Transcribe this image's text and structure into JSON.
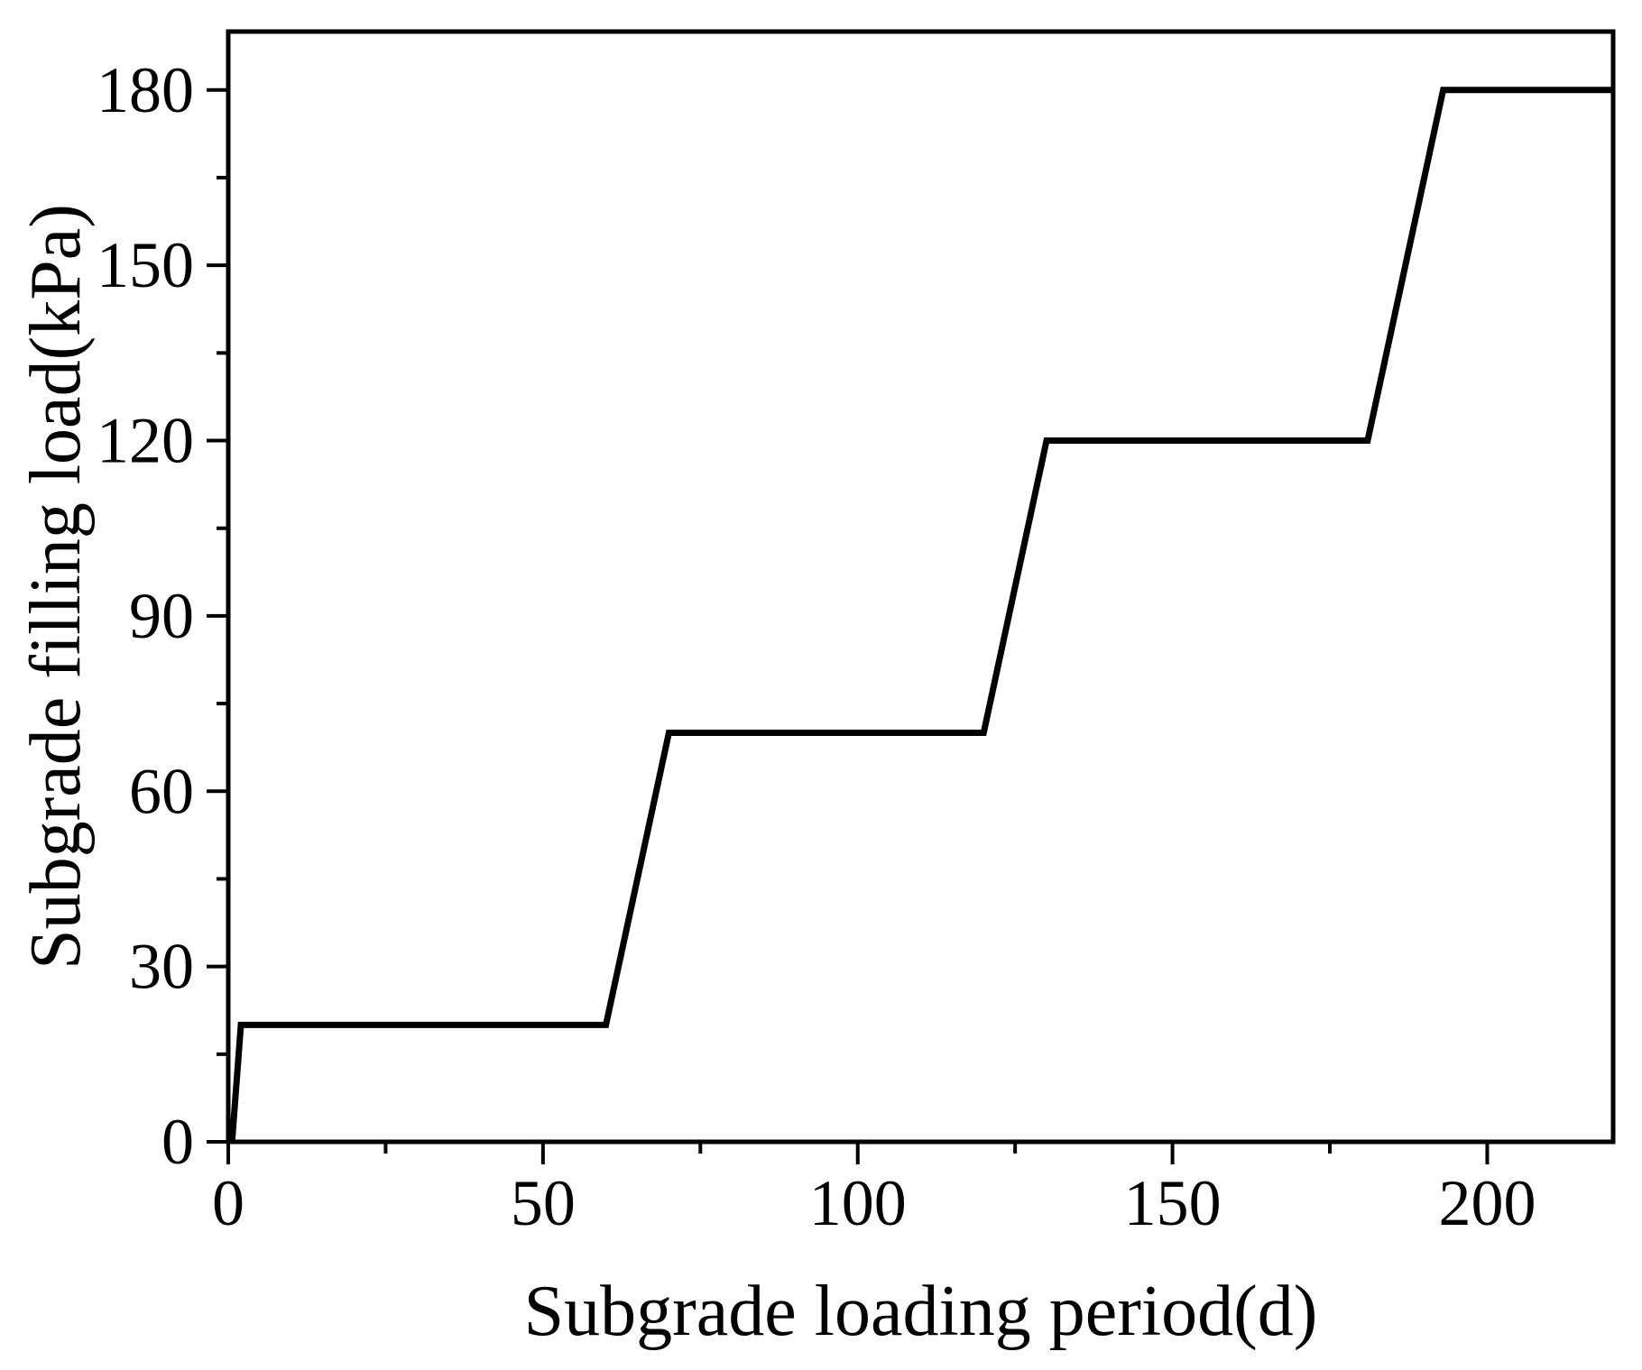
{
  "figure": {
    "background": "#ffffff",
    "line_color": "#000000",
    "axis_color": "#000000",
    "text_color": "#000000"
  },
  "chart_data": {
    "type": "line",
    "title": "",
    "xlabel": "Subgrade loading period(d)",
    "ylabel": "Subgrade filling load(kPa)",
    "series": [
      {
        "name": "Subgrade filling load",
        "points": [
          [
            0.6,
            0
          ],
          [
            2,
            20
          ],
          [
            60,
            20
          ],
          [
            70,
            70
          ],
          [
            120,
            70
          ],
          [
            130,
            120
          ],
          [
            181,
            120
          ],
          [
            193,
            180
          ],
          [
            220,
            180
          ]
        ]
      }
    ],
    "xlim": [
      0,
      220
    ],
    "ylim": [
      0,
      190
    ],
    "x_major_ticks": [
      0,
      50,
      100,
      150,
      200
    ],
    "x_minor_ticks": [
      25,
      75,
      125,
      175
    ],
    "y_major_ticks": [
      0,
      30,
      60,
      90,
      120,
      150,
      180
    ],
    "y_minor_ticks": [
      15,
      45,
      75,
      105,
      135,
      165
    ],
    "grid": false,
    "legend_position": "none"
  }
}
